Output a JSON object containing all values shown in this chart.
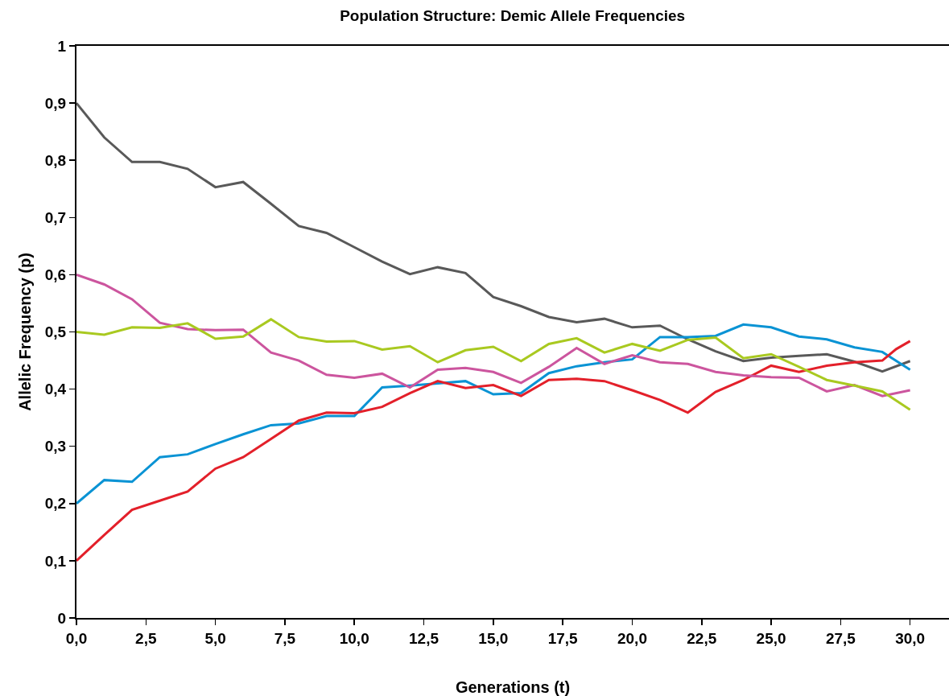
{
  "chart_data": {
    "type": "line",
    "title": "Population Structure: Demic Allele Frequencies",
    "xlabel": "Generations (t)",
    "ylabel": "Allelic Frequency (p)",
    "x": [
      0,
      1,
      2,
      3,
      4,
      5,
      6,
      7,
      8,
      9,
      10,
      11,
      12,
      13,
      14,
      15,
      16,
      17,
      18,
      19,
      20,
      21,
      22,
      23,
      24,
      25,
      26,
      27,
      28,
      29,
      30
    ],
    "series": [
      {
        "color": "#595959",
        "values": [
          0.9,
          0.84,
          0.797,
          0.797,
          0.785,
          0.753,
          0.762,
          0.724,
          0.685,
          0.673,
          0.648,
          0.623,
          0.601,
          0.613,
          0.603,
          0.561,
          0.545,
          0.526,
          0.517,
          0.523,
          0.508,
          0.511,
          0.487,
          0.466,
          0.449,
          0.455,
          0.458,
          0.461,
          0.448,
          0.431,
          0.449
        ]
      },
      {
        "color": "#0a93d4",
        "values": [
          0.2,
          0.241,
          0.238,
          0.281,
          0.286,
          0.304,
          0.321,
          0.337,
          0.34,
          0.353,
          0.353,
          0.403,
          0.406,
          0.41,
          0.414,
          0.391,
          0.393,
          0.428,
          0.44,
          0.447,
          0.452,
          0.491,
          0.491,
          0.493,
          0.513,
          0.508,
          0.492,
          0.487,
          0.473,
          0.465,
          0.434
        ]
      },
      {
        "color": "#e3202a",
        "x": [
          0,
          1,
          2,
          3,
          4,
          5,
          6,
          7,
          8,
          9,
          10,
          11,
          12,
          13,
          14,
          15,
          16,
          17,
          18,
          19,
          20,
          21,
          22,
          23,
          24,
          25,
          26,
          27,
          28,
          29,
          29.5,
          30
        ],
        "values": [
          0.1,
          0.145,
          0.189,
          0.205,
          0.221,
          0.261,
          0.281,
          0.313,
          0.345,
          0.359,
          0.358,
          0.369,
          0.393,
          0.414,
          0.402,
          0.407,
          0.388,
          0.416,
          0.418,
          0.414,
          0.398,
          0.381,
          0.359,
          0.395,
          0.416,
          0.441,
          0.43,
          0.441,
          0.447,
          0.45,
          0.47,
          0.484
        ]
      },
      {
        "color": "#cc559e",
        "values": [
          0.6,
          0.583,
          0.557,
          0.516,
          0.505,
          0.503,
          0.504,
          0.464,
          0.45,
          0.425,
          0.42,
          0.427,
          0.403,
          0.434,
          0.437,
          0.43,
          0.411,
          0.439,
          0.472,
          0.444,
          0.459,
          0.447,
          0.444,
          0.43,
          0.424,
          0.421,
          0.42,
          0.396,
          0.407,
          0.388,
          0.398
        ]
      },
      {
        "color": "#a9c920",
        "values": [
          0.5,
          0.495,
          0.508,
          0.507,
          0.515,
          0.488,
          0.492,
          0.522,
          0.491,
          0.483,
          0.484,
          0.469,
          0.475,
          0.447,
          0.468,
          0.474,
          0.449,
          0.479,
          0.489,
          0.464,
          0.479,
          0.467,
          0.486,
          0.49,
          0.454,
          0.461,
          0.439,
          0.416,
          0.406,
          0.396,
          0.364
        ]
      }
    ],
    "xlim": [
      0,
      31.4
    ],
    "ylim": [
      0,
      1
    ],
    "xticks": [
      {
        "value": 0,
        "label": "0,0"
      },
      {
        "value": 2.5,
        "label": "2,5"
      },
      {
        "value": 5,
        "label": "5,0"
      },
      {
        "value": 7.5,
        "label": "7,5"
      },
      {
        "value": 10,
        "label": "10,0"
      },
      {
        "value": 12.5,
        "label": "12,5"
      },
      {
        "value": 15,
        "label": "15,0"
      },
      {
        "value": 17.5,
        "label": "17,5"
      },
      {
        "value": 20,
        "label": "20,0"
      },
      {
        "value": 22.5,
        "label": "22,5"
      },
      {
        "value": 25,
        "label": "25,0"
      },
      {
        "value": 27.5,
        "label": "27,5"
      },
      {
        "value": 30,
        "label": "30,0"
      }
    ],
    "yticks": [
      0,
      {
        "value": 0.1,
        "label": "0,1"
      },
      {
        "value": 0.2,
        "label": "0,2"
      },
      {
        "value": 0.3,
        "label": "0,3"
      },
      {
        "value": 0.4,
        "label": "0,4"
      },
      {
        "value": 0.5,
        "label": "0,5"
      },
      {
        "value": 0.6,
        "label": "0,6"
      },
      {
        "value": 0.7,
        "label": "0,7"
      },
      {
        "value": 0.8,
        "label": "0,8"
      },
      {
        "value": 0.9,
        "label": "0,9"
      },
      1
    ],
    "grid": false,
    "marker": "none",
    "line_style": "solid"
  }
}
